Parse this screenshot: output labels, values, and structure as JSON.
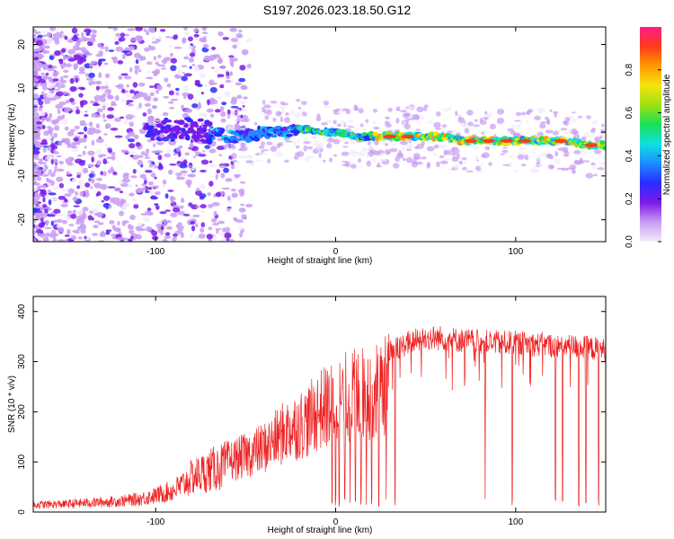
{
  "title": "S197.2026.023.18.50.G12",
  "chart_data": [
    {
      "type": "heatmap",
      "name": "spectrogram",
      "xlabel": "Height of straight line (km)",
      "ylabel": "Frequency (Hz)",
      "xlim": [
        -168,
        150
      ],
      "ylim": [
        -25,
        24
      ],
      "xticks": [
        "-100",
        "0",
        "100"
      ],
      "xtick_values": [
        -100,
        0,
        100
      ],
      "yticks": [
        "-20",
        "-10",
        "0",
        "10",
        "20"
      ],
      "ytick_values": [
        -20,
        -10,
        0,
        10,
        20
      ],
      "ridge": {
        "x": [
          -100,
          -90,
          -80,
          -70,
          -60,
          -50,
          -40,
          -30,
          -20,
          -10,
          0,
          10,
          20,
          30,
          40,
          50,
          60,
          70,
          80,
          90,
          100,
          110,
          120,
          130,
          140,
          150
        ],
        "freq": [
          1,
          0,
          1,
          0,
          -1,
          -1,
          0,
          0,
          1,
          0,
          0,
          -1,
          -1,
          -1,
          -1,
          -1,
          -1,
          -2,
          -2,
          -2,
          -2,
          -2,
          -2,
          -2,
          -3,
          -3
        ]
      }
    },
    {
      "type": "colorbar",
      "name": "colorbar",
      "label": "Normalized spectral amplitude",
      "range": [
        0,
        1
      ],
      "ticks": [
        "0.0",
        "0.2",
        "0.4",
        "0.6",
        "0.8"
      ],
      "tick_values": [
        0,
        0.2,
        0.4,
        0.6,
        0.8
      ],
      "colors": [
        "#f2ecfb",
        "#c89cf3",
        "#7a1bea",
        "#2b2bff",
        "#1a8cff",
        "#10e0e0",
        "#18e05a",
        "#9ee010",
        "#f3e410",
        "#ff9a00",
        "#ff3a1a",
        "#ff1a8a"
      ]
    },
    {
      "type": "line",
      "name": "snr",
      "xlabel": "Height of straight line (km)",
      "ylabel": "SNR (10 * v/v)",
      "xlim": [
        -168,
        150
      ],
      "ylim": [
        0,
        430
      ],
      "xticks": [
        "-100",
        "0",
        "100"
      ],
      "xtick_values": [
        -100,
        0,
        100
      ],
      "yticks": [
        "0",
        "100",
        "200",
        "300",
        "400"
      ],
      "ytick_values": [
        0,
        100,
        200,
        300,
        400
      ],
      "color": "#ee2222",
      "x": [
        -168,
        -150,
        -140,
        -130,
        -120,
        -110,
        -100,
        -90,
        -85,
        -80,
        -70,
        -60,
        -50,
        -40,
        -35,
        -30,
        -25,
        -20,
        -15,
        -10,
        0,
        5,
        10,
        20,
        25,
        30,
        40,
        50,
        60,
        70,
        80,
        90,
        100,
        110,
        120,
        130,
        140,
        150
      ],
      "values": [
        20,
        22,
        25,
        27,
        30,
        35,
        45,
        60,
        75,
        95,
        115,
        130,
        145,
        165,
        180,
        200,
        215,
        225,
        235,
        260,
        280,
        295,
        300,
        310,
        315,
        335,
        355,
        365,
        365,
        360,
        358,
        355,
        355,
        352,
        350,
        348,
        345,
        340
      ]
    }
  ]
}
